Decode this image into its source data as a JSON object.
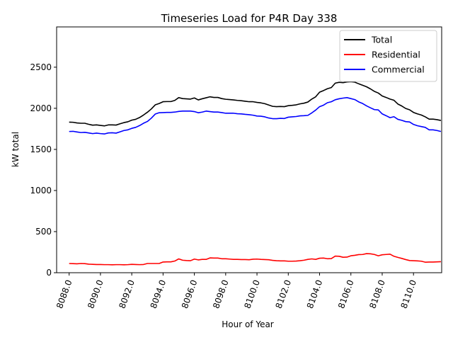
{
  "chart_data": {
    "type": "line",
    "title": "Timeseries Load for P4R   Day 338",
    "xlabel": "Hour of Year",
    "ylabel": "kW total",
    "xlim": [
      8087.2,
      8111.8
    ],
    "ylim": [
      0,
      2990
    ],
    "x_ticks": [
      8088,
      8090,
      8092,
      8094,
      8096,
      8098,
      8100,
      8102,
      8104,
      8106,
      8108,
      8110
    ],
    "x_tick_labels": [
      "8088.0",
      "8090.0",
      "8092.0",
      "8094.0",
      "8096.0",
      "8098.0",
      "8100.0",
      "8102.0",
      "8104.0",
      "8106.0",
      "8108.0",
      "8110.0"
    ],
    "y_ticks": [
      0,
      500,
      1000,
      1500,
      2000,
      2500
    ],
    "y_tick_labels": [
      "0",
      "500",
      "1000",
      "1500",
      "2000",
      "2500"
    ],
    "legend_position": "top-right",
    "x": [
      8088.0,
      8088.25,
      8088.5,
      8088.75,
      8089.0,
      8089.25,
      8089.5,
      8089.75,
      8090.0,
      8090.25,
      8090.5,
      8090.75,
      8091.0,
      8091.25,
      8091.5,
      8091.75,
      8092.0,
      8092.25,
      8092.5,
      8092.75,
      8093.0,
      8093.25,
      8093.5,
      8093.75,
      8094.0,
      8094.25,
      8094.5,
      8094.75,
      8095.0,
      8095.25,
      8095.5,
      8095.75,
      8096.0,
      8096.25,
      8096.5,
      8096.75,
      8097.0,
      8097.25,
      8097.5,
      8097.75,
      8098.0,
      8098.25,
      8098.5,
      8098.75,
      8099.0,
      8099.25,
      8099.5,
      8099.75,
      8100.0,
      8100.25,
      8100.5,
      8100.75,
      8101.0,
      8101.25,
      8101.5,
      8101.75,
      8102.0,
      8102.25,
      8102.5,
      8102.75,
      8103.0,
      8103.25,
      8103.5,
      8103.75,
      8104.0,
      8104.25,
      8104.5,
      8104.75,
      8105.0,
      8105.25,
      8105.5,
      8105.75,
      8106.0,
      8106.25,
      8106.5,
      8106.75,
      8107.0,
      8107.25,
      8107.5,
      8107.75,
      8108.0,
      8108.25,
      8108.5,
      8108.75,
      8109.0,
      8109.25,
      8109.5,
      8109.75,
      8110.0,
      8110.25,
      8110.5,
      8110.75,
      8111.0,
      8111.25,
      8111.5,
      8111.75
    ],
    "series": [
      {
        "name": "Total",
        "color": "#000000",
        "values": [
          1832,
          1830,
          1822,
          1818,
          1818,
          1805,
          1795,
          1798,
          1792,
          1786,
          1798,
          1798,
          1796,
          1812,
          1826,
          1836,
          1856,
          1866,
          1888,
          1918,
          1952,
          1992,
          2042,
          2058,
          2080,
          2082,
          2082,
          2096,
          2130,
          2118,
          2115,
          2112,
          2126,
          2102,
          2116,
          2128,
          2140,
          2132,
          2132,
          2118,
          2110,
          2106,
          2102,
          2096,
          2092,
          2086,
          2080,
          2080,
          2072,
          2066,
          2056,
          2040,
          2024,
          2020,
          2022,
          2020,
          2032,
          2036,
          2042,
          2054,
          2062,
          2076,
          2112,
          2140,
          2196,
          2216,
          2238,
          2252,
          2306,
          2316,
          2312,
          2320,
          2324,
          2318,
          2298,
          2280,
          2262,
          2236,
          2206,
          2186,
          2150,
          2132,
          2112,
          2098,
          2052,
          2028,
          1998,
          1982,
          1950,
          1932,
          1918,
          1896,
          1868,
          1868,
          1862,
          1852
        ]
      },
      {
        "name": "Residential",
        "color": "#ff0000",
        "values": [
          112,
          110,
          108,
          112,
          110,
          104,
          102,
          100,
          100,
          98,
          98,
          96,
          98,
          98,
          96,
          98,
          102,
          100,
          98,
          100,
          112,
          112,
          112,
          112,
          130,
          132,
          132,
          142,
          168,
          152,
          148,
          146,
          166,
          156,
          162,
          162,
          180,
          178,
          178,
          170,
          170,
          166,
          162,
          162,
          160,
          160,
          158,
          164,
          166,
          162,
          160,
          158,
          150,
          146,
          144,
          144,
          140,
          140,
          142,
          146,
          152,
          162,
          168,
          162,
          176,
          178,
          170,
          172,
          202,
          200,
          188,
          190,
          206,
          212,
          220,
          222,
          232,
          230,
          222,
          206,
          218,
          222,
          226,
          200,
          186,
          174,
          160,
          148,
          146,
          144,
          140,
          128,
          130,
          130,
          132,
          134
        ]
      },
      {
        "name": "Commercial",
        "color": "#0000ff",
        "values": [
          1718,
          1720,
          1712,
          1705,
          1708,
          1700,
          1692,
          1698,
          1692,
          1688,
          1700,
          1702,
          1698,
          1714,
          1730,
          1738,
          1756,
          1768,
          1790,
          1818,
          1840,
          1880,
          1930,
          1946,
          1948,
          1950,
          1950,
          1954,
          1962,
          1966,
          1966,
          1966,
          1960,
          1946,
          1954,
          1966,
          1960,
          1954,
          1954,
          1948,
          1940,
          1940,
          1940,
          1934,
          1932,
          1926,
          1922,
          1916,
          1906,
          1904,
          1896,
          1882,
          1874,
          1874,
          1878,
          1876,
          1892,
          1896,
          1900,
          1908,
          1910,
          1914,
          1944,
          1978,
          2020,
          2038,
          2068,
          2080,
          2104,
          2116,
          2124,
          2130,
          2118,
          2106,
          2078,
          2058,
          2030,
          2006,
          1984,
          1980,
          1932,
          1910,
          1886,
          1898,
          1866,
          1854,
          1838,
          1834,
          1804,
          1788,
          1778,
          1768,
          1738,
          1738,
          1730,
          1718
        ]
      }
    ]
  }
}
